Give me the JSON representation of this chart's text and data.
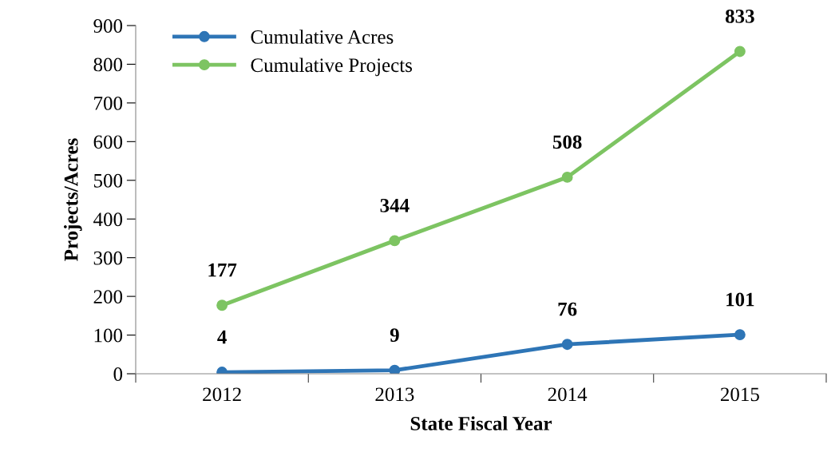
{
  "chart_data": {
    "type": "line",
    "xlabel": "State Fiscal Year",
    "ylabel": "Projects/Acres",
    "categories": [
      "2012",
      "2013",
      "2014",
      "2015"
    ],
    "series": [
      {
        "name": "Cumulative Acres",
        "color": "#2e75b6",
        "values": [
          4,
          9,
          76,
          101
        ]
      },
      {
        "name": "Cumulative Projects",
        "color": "#7dc462",
        "values": [
          177,
          344,
          508,
          833
        ]
      }
    ],
    "ylim": [
      0,
      900
    ],
    "yticks": [
      0,
      100,
      200,
      300,
      400,
      500,
      600,
      700,
      800,
      900
    ],
    "grid": false,
    "legend": "top left",
    "marker": "circle",
    "line_style": "solid",
    "data_labels": true
  }
}
